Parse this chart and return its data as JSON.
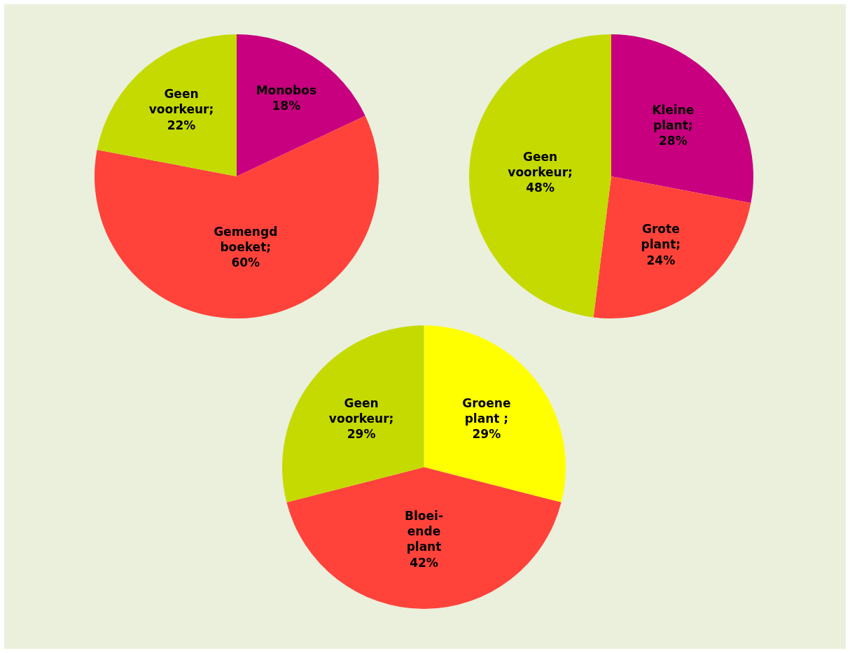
{
  "chart_data": [
    {
      "type": "pie",
      "categories": [
        "Monobos",
        "Gemengd\nboeket",
        "Geen\nvoorkeur"
      ],
      "values": [
        18,
        60,
        22
      ],
      "value_labels": [
        "\n18%",
        ";\n60%",
        ";\n22%"
      ],
      "colors": [
        "#c8007f",
        "#ff433a",
        "#c5da00"
      ]
    },
    {
      "type": "pie",
      "categories": [
        "Kleine\nplant",
        "Grote\nplant",
        "Geen\nvoorkeur"
      ],
      "values": [
        28,
        24,
        48
      ],
      "value_labels": [
        ";\n28%",
        ";\n24%",
        ";\n48%"
      ],
      "colors": [
        "#c8007f",
        "#ff433a",
        "#c5da00"
      ]
    },
    {
      "type": "pie",
      "categories": [
        "Groene\nplant",
        "Bloei-\nende\nplant",
        "Geen\nvoorkeur"
      ],
      "values": [
        29,
        42,
        29
      ],
      "value_labels": [
        " ;\n29%",
        "\n42%",
        ";\n29%"
      ],
      "colors": [
        "#ffff00",
        "#ff433a",
        "#c5da00"
      ]
    }
  ]
}
